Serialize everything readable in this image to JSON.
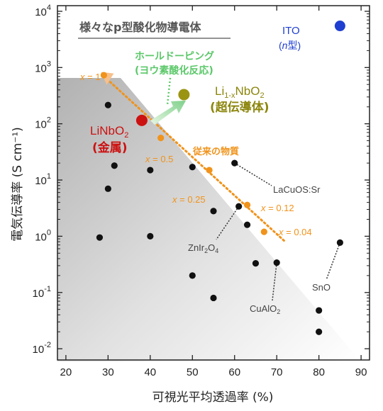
{
  "chart_data": {
    "type": "scatter",
    "title": "様々なp型酸化物導電体",
    "xlabel": "可視光平均透過率 (%)",
    "ylabel": "電気伝導率 (S cm⁻¹)",
    "xlim": [
      18,
      92
    ],
    "ylim_log10": [
      -2.2,
      4.1
    ],
    "x_ticks": [
      20,
      30,
      40,
      50,
      60,
      70,
      80,
      90
    ],
    "y_ticks": [
      {
        "base": "10",
        "exp": "-2",
        "v": -2
      },
      {
        "base": "10",
        "exp": "-1",
        "v": -1
      },
      {
        "base": "10",
        "exp": "0",
        "v": 0
      },
      {
        "base": "10",
        "exp": "1",
        "v": 1
      },
      {
        "base": "10",
        "exp": "2",
        "v": 2
      },
      {
        "base": "10",
        "exp": "3",
        "v": 3
      },
      {
        "base": "10",
        "exp": "4",
        "v": 4
      }
    ],
    "y_scale": "log",
    "grid": false,
    "series": [
      {
        "color": "#111111",
        "points": [
          {
            "x": 28,
            "y": 0.95
          },
          {
            "x": 30,
            "y": 215
          },
          {
            "x": 30,
            "y": 7
          },
          {
            "x": 31.5,
            "y": 18
          },
          {
            "x": 40,
            "y": 15
          },
          {
            "x": 40,
            "y": 1.0
          },
          {
            "x": 50,
            "y": 17
          },
          {
            "x": 50,
            "y": 0.2
          },
          {
            "x": 55,
            "y": 2.8
          },
          {
            "x": 55,
            "y": 0.08
          },
          {
            "x": 60,
            "y": 20
          },
          {
            "x": 61,
            "y": 3.4
          },
          {
            "x": 63,
            "y": 1.6
          },
          {
            "x": 65,
            "y": 0.33
          },
          {
            "x": 70,
            "y": 0.34
          },
          {
            "x": 80,
            "y": 0.048
          },
          {
            "x": 80,
            "y": 0.02
          },
          {
            "x": 85,
            "y": 0.77
          }
        ]
      },
      {
        "color": "#f0931b",
        "points": [
          {
            "x": 29,
            "y": 730
          },
          {
            "x": 42.5,
            "y": 56
          },
          {
            "x": 54,
            "y": 15
          },
          {
            "x": 63,
            "y": 3.6
          },
          {
            "x": 67,
            "y": 1.2
          }
        ]
      },
      {
        "color": "#cc1111",
        "points": [
          {
            "x": 38,
            "y": 115
          }
        ]
      },
      {
        "color": "#9a9412",
        "points": [
          {
            "x": 48,
            "y": 330
          }
        ]
      },
      {
        "color": "#1f3fd1",
        "points": [
          {
            "x": 85,
            "y": 5500
          }
        ]
      }
    ],
    "trend_line": {
      "from": {
        "x": 29,
        "y": 700
      },
      "to": {
        "x": 72,
        "y": 0.8
      },
      "color": "#f0931b"
    },
    "annotations": {
      "ito": "ITO",
      "ito_type_n": "n",
      "ito_type_rest": "型)",
      "hole_doping_1": "ホールドーピング",
      "hole_doping_2": "(ヨウ素酸化反応)",
      "li_prefix": "Li",
      "li_sub": "1-x",
      "li_mid": "NbO",
      "li_sub2": "2",
      "superconductor": "(超伝導体)",
      "linbo2_main": "LiNbO",
      "linbo2_sub": "2",
      "metal": "(金属)",
      "conventional": "従来の物質",
      "x_eq": "x",
      "x1": " = 1",
      "x05": " = 0.5",
      "x025": " = 0.25",
      "x012": " = 0.12",
      "x004": " = 0.04",
      "lacuos": "LaCuOS:Sr",
      "znir_main": "ZnIr",
      "znir_sub": "2",
      "znir_o": "O",
      "znir_sub2": "4",
      "cualo": "CuAlO",
      "cualo_sub": "2",
      "sno": "SnO"
    }
  }
}
